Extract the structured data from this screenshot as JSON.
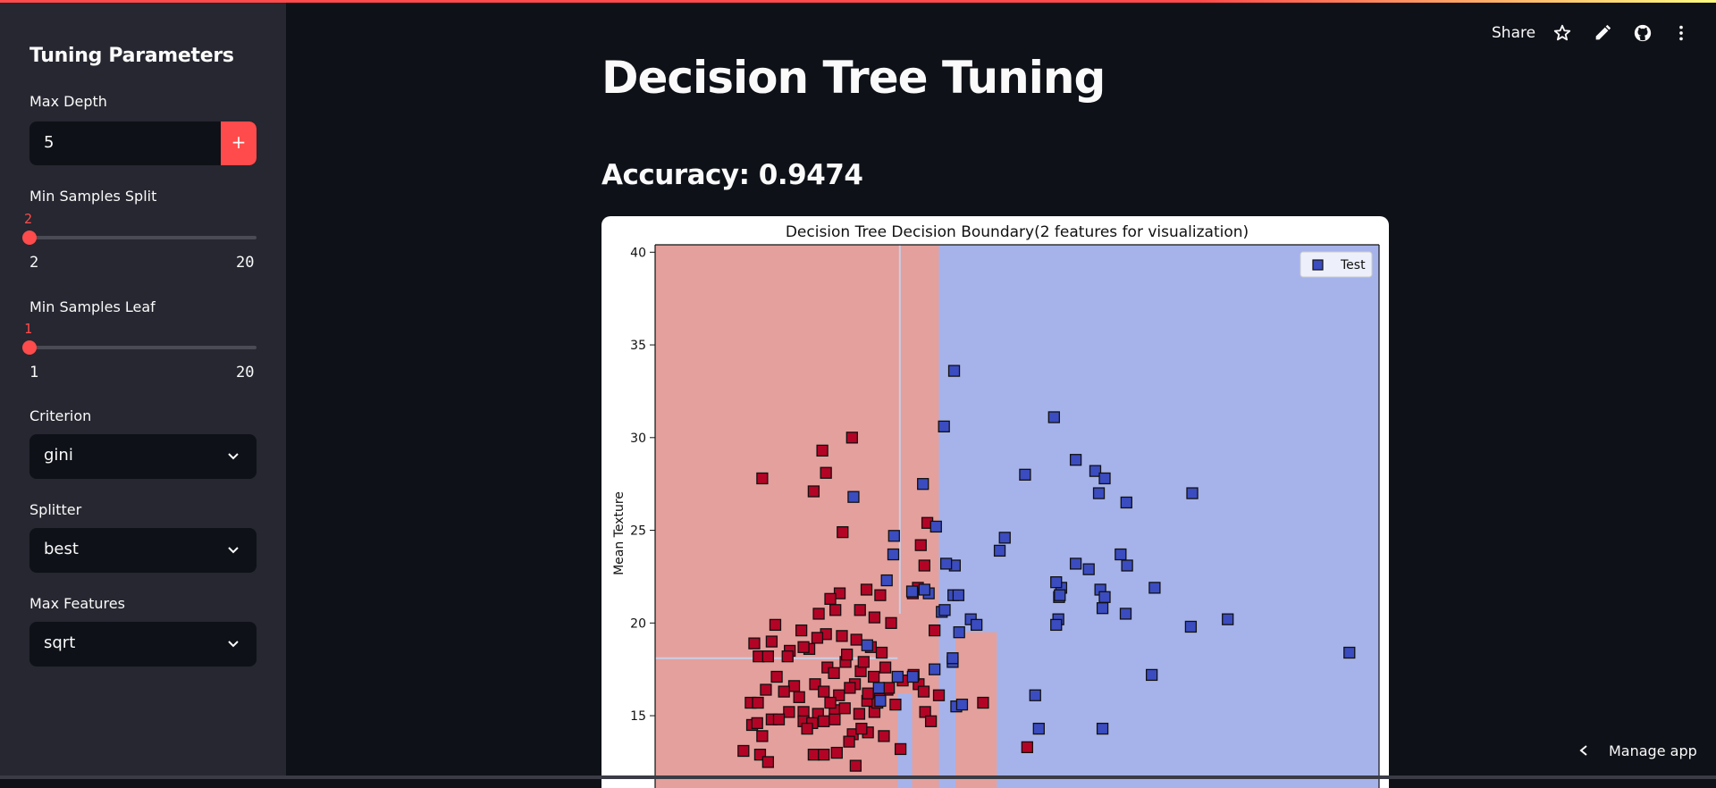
{
  "sidebar": {
    "title": "Tuning Parameters",
    "max_depth": {
      "label": "Max Depth",
      "value": "5",
      "minus": "−",
      "plus": "+"
    },
    "min_samples_split": {
      "label": "Min Samples Split",
      "value": "2",
      "min": "2",
      "max": "20",
      "fraction": 0
    },
    "min_samples_leaf": {
      "label": "Min Samples Leaf",
      "value": "1",
      "min": "1",
      "max": "20",
      "fraction": 0
    },
    "criterion": {
      "label": "Criterion",
      "value": "gini"
    },
    "splitter": {
      "label": "Splitter",
      "value": "best"
    },
    "max_features": {
      "label": "Max Features",
      "value": "sqrt"
    }
  },
  "header": {
    "share_label": "Share",
    "icons": [
      "star-icon",
      "pencil-icon",
      "github-icon",
      "more-vert-icon"
    ]
  },
  "main": {
    "title": "Decision Tree Tuning",
    "accuracy": "Accuracy: 0.9474"
  },
  "footer": {
    "manage_label": "Manage app"
  },
  "colors": {
    "accent": "#ff4b4b",
    "bg": "#0e1117",
    "sidebar": "#262730",
    "red_region": "#e4a09c",
    "blue_region": "#a6b3ea",
    "red_point": "#b40426",
    "blue_point": "#3b4cc0"
  },
  "chart_data": {
    "type": "scatter",
    "title": "Decision Tree Decision Boundary(2 features for visualization)",
    "ylabel": "Mean Texture",
    "xlabel": "",
    "ylim": [
      11.1,
      40.4
    ],
    "xlim": [
      0,
      100
    ],
    "yticks": [
      15,
      20,
      25,
      30,
      35,
      40
    ],
    "legend": {
      "label": "Test",
      "placement": "top-right"
    },
    "regions": [
      {
        "class": "red",
        "x0": 0,
        "x1": 39.2,
        "y0": 11.1,
        "y1": 40.4
      },
      {
        "class": "blue",
        "x0": 39.2,
        "x1": 100,
        "y0": 11.1,
        "y1": 40.4
      },
      {
        "class": "red",
        "x0": 41.5,
        "x1": 47.2,
        "y0": 11.1,
        "y1": 19.5
      },
      {
        "class": "blue",
        "x0": 39.2,
        "x1": 40.5,
        "y0": 11.1,
        "y1": 17.5
      },
      {
        "class": "blue",
        "x0": 33.5,
        "x1": 35.5,
        "y0": 11.1,
        "y1": 16.2
      }
    ],
    "boundary_lines": [
      {
        "x0": 33.8,
        "x1": 33.8,
        "y0": 20.5,
        "y1": 40.4
      },
      {
        "x0": 0,
        "x1": 33.5,
        "y0": 18.1,
        "y1": 18.1
      }
    ],
    "points_red": [
      [
        14.8,
        27.8
      ],
      [
        23.1,
        29.3
      ],
      [
        27.2,
        30
      ],
      [
        23.6,
        28.1
      ],
      [
        21.9,
        27.1
      ],
      [
        25.9,
        24.9
      ],
      [
        36.7,
        24.2
      ],
      [
        37.6,
        25.4
      ],
      [
        37.2,
        23.1
      ],
      [
        36.3,
        21.9
      ],
      [
        29.2,
        21.8
      ],
      [
        28.3,
        20.7
      ],
      [
        25.5,
        21.6
      ],
      [
        22.6,
        20.5
      ],
      [
        20.2,
        19.6
      ],
      [
        16.6,
        19.9
      ],
      [
        13.7,
        18.9
      ],
      [
        14.3,
        18.2
      ],
      [
        15.6,
        18.2
      ],
      [
        16.1,
        19
      ],
      [
        18.6,
        18.5
      ],
      [
        21.3,
        18.6
      ],
      [
        23.6,
        19.4
      ],
      [
        25.8,
        19.3
      ],
      [
        27.8,
        19.1
      ],
      [
        29.8,
        18.7
      ],
      [
        31.3,
        18.4
      ],
      [
        32.6,
        20
      ],
      [
        35.6,
        21.6
      ],
      [
        38.6,
        19.6
      ],
      [
        24.2,
        21.3
      ],
      [
        24.9,
        20.7
      ],
      [
        31.1,
        21.5
      ],
      [
        30.3,
        20.3
      ],
      [
        23.8,
        17.6
      ],
      [
        26.3,
        17.9
      ],
      [
        28.4,
        17.4
      ],
      [
        30.2,
        17.1
      ],
      [
        32.1,
        16.4
      ],
      [
        34.2,
        16.9
      ],
      [
        36.4,
        16.7
      ],
      [
        37.1,
        16.3
      ],
      [
        39.2,
        16.1
      ],
      [
        22.1,
        16.7
      ],
      [
        23.3,
        16.3
      ],
      [
        25.4,
        16.1
      ],
      [
        27.6,
        16.7
      ],
      [
        29.3,
        15.8
      ],
      [
        31,
        15.9
      ],
      [
        19.2,
        16.6
      ],
      [
        16.8,
        17.1
      ],
      [
        15.3,
        16.4
      ],
      [
        13.2,
        15.7
      ],
      [
        14.2,
        15.7
      ],
      [
        18.5,
        15.2
      ],
      [
        20.5,
        15.2
      ],
      [
        22.5,
        15.1
      ],
      [
        24.8,
        15.3
      ],
      [
        26.2,
        15.4
      ],
      [
        28.2,
        15.1
      ],
      [
        30.3,
        15.2
      ],
      [
        33.2,
        15.6
      ],
      [
        37.3,
        15.2
      ],
      [
        38.1,
        14.7
      ],
      [
        16.1,
        14.8
      ],
      [
        13.4,
        14.5
      ],
      [
        14.1,
        14.6
      ],
      [
        17.1,
        14.8
      ],
      [
        20.5,
        14.7
      ],
      [
        24.8,
        14.8
      ],
      [
        21.7,
        14.6
      ],
      [
        23.3,
        14.7
      ],
      [
        27.3,
        14
      ],
      [
        29.4,
        14.1
      ],
      [
        31.6,
        13.9
      ],
      [
        33.9,
        13.2
      ],
      [
        14.8,
        13.9
      ],
      [
        12.2,
        13.1
      ],
      [
        14.5,
        12.9
      ],
      [
        15.6,
        12.5
      ],
      [
        21.9,
        12.9
      ],
      [
        23.3,
        12.9
      ],
      [
        25.1,
        13
      ],
      [
        26.8,
        13.6
      ],
      [
        27.7,
        12.3
      ],
      [
        28.5,
        14.3
      ],
      [
        30.7,
        15.7
      ],
      [
        35.7,
        17.2
      ],
      [
        29.4,
        16.2
      ],
      [
        26.9,
        16.5
      ],
      [
        24.7,
        17.3
      ],
      [
        20.5,
        18.7
      ],
      [
        22.4,
        19.2
      ],
      [
        31.8,
        17.6
      ],
      [
        32.3,
        16.5
      ],
      [
        19.9,
        16
      ],
      [
        18.3,
        18.2
      ],
      [
        26.5,
        18.3
      ],
      [
        28.8,
        17.9
      ],
      [
        17.8,
        16.3
      ],
      [
        21,
        14.3
      ],
      [
        24.2,
        15.7
      ],
      [
        45.3,
        15.7
      ],
      [
        51.4,
        13.3
      ]
    ],
    "points_blue": [
      [
        41.3,
        33.6
      ],
      [
        39.9,
        30.6
      ],
      [
        55.1,
        31.1
      ],
      [
        27.4,
        26.8
      ],
      [
        37,
        27.5
      ],
      [
        38.8,
        25.2
      ],
      [
        33,
        24.7
      ],
      [
        48.3,
        24.6
      ],
      [
        47.6,
        23.9
      ],
      [
        41.4,
        23.1
      ],
      [
        40.2,
        23.2
      ],
      [
        51.1,
        28
      ],
      [
        58.1,
        28.8
      ],
      [
        60.8,
        28.2
      ],
      [
        62.1,
        27.8
      ],
      [
        61.3,
        27
      ],
      [
        65.1,
        26.5
      ],
      [
        74.2,
        27
      ],
      [
        32,
        22.3
      ],
      [
        35.5,
        21.7
      ],
      [
        37.8,
        21.6
      ],
      [
        39.6,
        20.6
      ],
      [
        40,
        20.7
      ],
      [
        41.2,
        21.5
      ],
      [
        41.9,
        21.5
      ],
      [
        43.6,
        20.2
      ],
      [
        42,
        19.5
      ],
      [
        56.1,
        21.9
      ],
      [
        55.8,
        21.4
      ],
      [
        55.4,
        22.2
      ],
      [
        55.9,
        21.5
      ],
      [
        55.7,
        20.2
      ],
      [
        55.4,
        19.9
      ],
      [
        58.1,
        23.2
      ],
      [
        59.9,
        22.9
      ],
      [
        61.5,
        21.8
      ],
      [
        62.1,
        21.4
      ],
      [
        61.8,
        20.8
      ],
      [
        65,
        20.5
      ],
      [
        65.2,
        23.1
      ],
      [
        64.3,
        23.7
      ],
      [
        69,
        21.9
      ],
      [
        74,
        19.8
      ],
      [
        79.1,
        20.2
      ],
      [
        95.9,
        18.4
      ],
      [
        33.5,
        17.1
      ],
      [
        30.9,
        16.5
      ],
      [
        31.1,
        15.8
      ],
      [
        35.6,
        17.1
      ],
      [
        38.6,
        17.5
      ],
      [
        41.1,
        17.9
      ],
      [
        41.1,
        18.1
      ],
      [
        41.6,
        15.5
      ],
      [
        42.4,
        15.6
      ],
      [
        52.5,
        16.1
      ],
      [
        53,
        14.3
      ],
      [
        61.8,
        14.3
      ],
      [
        68.6,
        17.2
      ],
      [
        29.3,
        18.8
      ],
      [
        44.4,
        19.9
      ],
      [
        32.9,
        23.7
      ],
      [
        37.2,
        21.8
      ]
    ]
  }
}
